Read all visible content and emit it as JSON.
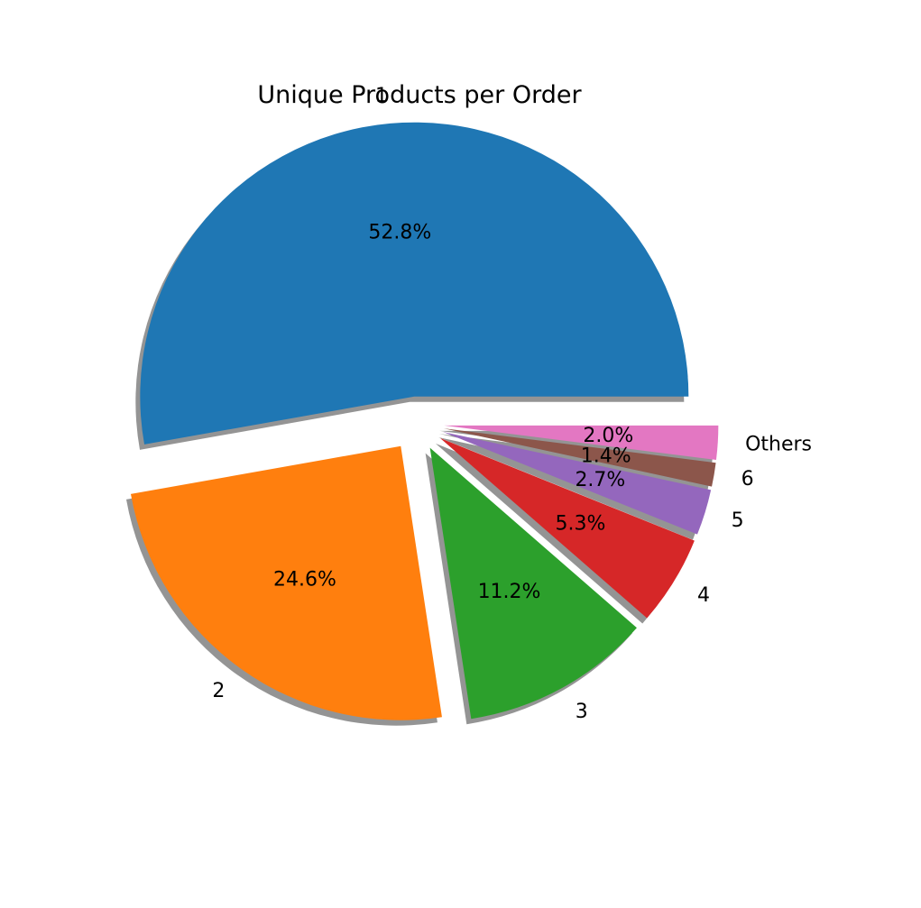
{
  "chart_data": {
    "type": "pie",
    "title": "Unique Products per Order",
    "labels": [
      "1",
      "2",
      "3",
      "4",
      "5",
      "6",
      "Others"
    ],
    "values": [
      52.8,
      24.6,
      11.2,
      5.3,
      2.7,
      1.4,
      2.0
    ],
    "value_labels": [
      "52.8%",
      "24.6%",
      "11.2%",
      "5.3%",
      "2.7%",
      "1.4%",
      "2.0%"
    ],
    "colors": [
      "#1f77b4",
      "#ff7f0e",
      "#2ca02c",
      "#d62728",
      "#9467bd",
      "#8c564b",
      "#e377c2"
    ],
    "explode": [
      0.1,
      0.1,
      0.1,
      0.1,
      0.1,
      0.1,
      0.1
    ],
    "shadow": true,
    "start_angle_deg": 0,
    "direction": "counterclockwise",
    "legend": "none"
  }
}
